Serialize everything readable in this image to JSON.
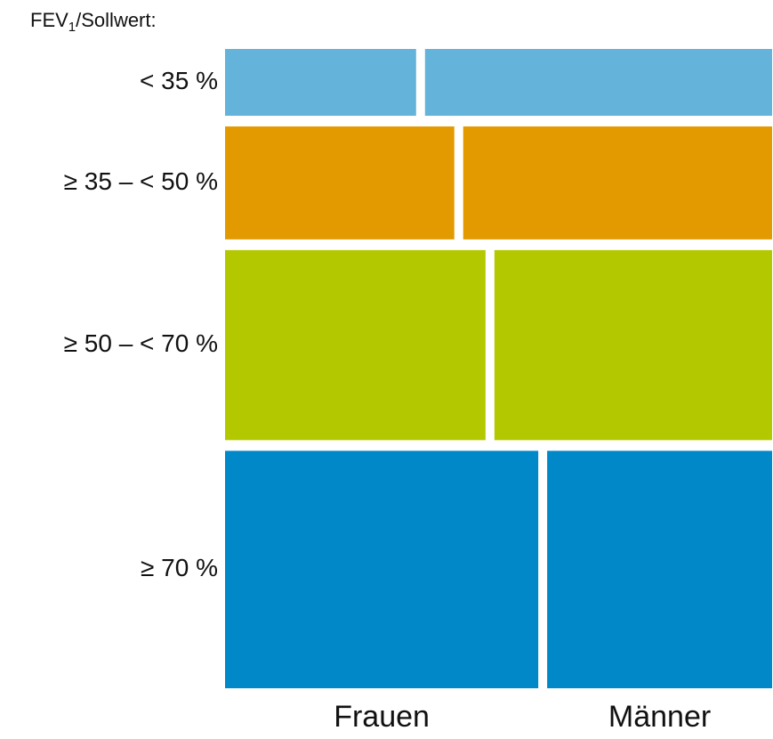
{
  "chart_data": {
    "type": "mosaic",
    "title_parts": [
      "FEV",
      "1",
      "/Sollwert:"
    ],
    "categories": [
      "< 35 %",
      "≥ 35 – < 50 %",
      "≥ 50 – < 70 %",
      "≥ 70 %"
    ],
    "row_shares": [
      11.0,
      18.6,
      31.3,
      39.1
    ],
    "row_colors": [
      "#63b3da",
      "#e39a00",
      "#b4c800",
      "#0088c9"
    ],
    "series": [
      {
        "name": "Frauen",
        "values": [
          35.5,
          42.6,
          48.4,
          58.2
        ]
      },
      {
        "name": "Männer",
        "values": [
          64.5,
          57.4,
          51.6,
          41.8
        ]
      }
    ]
  }
}
